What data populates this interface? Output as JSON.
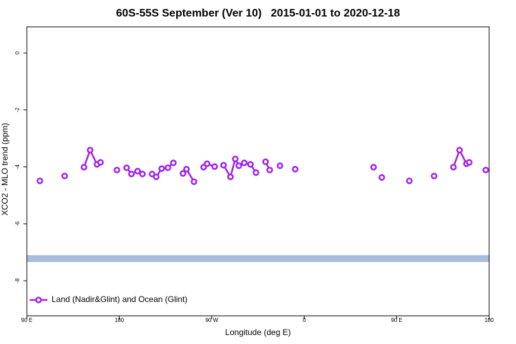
{
  "chart_data": {
    "type": "line",
    "title": "60S-55S September (Ver 10)   2015-01-01 to 2020-12-18",
    "x_label": "Longitude (deg E)",
    "y_label": "XCO2 - MLO trend (ppm)",
    "xlim": [
      90,
      540
    ],
    "ylim": [
      -9.23,
      0.92
    ],
    "xticks": [
      {
        "value": 90,
        "label": "90 E"
      },
      {
        "value": 180,
        "label": "180"
      },
      {
        "value": 270,
        "label": "90 W"
      },
      {
        "value": 360,
        "label": "0"
      },
      {
        "value": 450,
        "label": "90 E"
      },
      {
        "value": 540,
        "label": "180"
      }
    ],
    "yticks": [
      0,
      -2,
      -4,
      -6,
      -8
    ],
    "legend": "bottom-left",
    "band": {
      "value": -7.22,
      "color": "#a7bde0"
    },
    "series": [
      {
        "name": "Land (Nadir&Glint) and Ocean (Glint)",
        "color": "#a020f0",
        "x": [
          102.7,
          null,
          126.8,
          null,
          145.6,
          151.6,
          158.3,
          161.7,
          null,
          177.7,
          null,
          187.1,
          191.8,
          197.8,
          202.5,
          null,
          211.9,
          215.9,
          221.3,
          227.3,
          232.6,
          null,
          242.0,
          245.4,
          252.7,
          null,
          262.1,
          265.4,
          272.8,
          null,
          281.5,
          288.2,
          292.9,
          296.3,
          301.6,
          307.7,
          313.0,
          null,
          322.4,
          326.4,
          null,
          336.4,
          null,
          351.2,
          null,
          427.5,
          null,
          435.5,
          null,
          462.3,
          null,
          486.4,
          null,
          505.2,
          511.2,
          517.9,
          520.6,
          null,
          536.7
        ],
        "values": [
          -4.49,
          null,
          -4.32,
          null,
          -4.01,
          -3.41,
          -3.91,
          -3.84,
          null,
          -4.11,
          null,
          -4.03,
          -4.25,
          -4.15,
          -4.25,
          null,
          -4.25,
          -4.35,
          -4.06,
          -4.03,
          -3.86,
          null,
          -4.23,
          -4.08,
          -4.52,
          null,
          -4.01,
          -3.89,
          -3.99,
          null,
          -3.94,
          -4.35,
          -3.72,
          -3.96,
          -3.86,
          -3.91,
          -4.2,
          null,
          -3.82,
          -4.11,
          null,
          -3.96,
          null,
          -4.08,
          null,
          -4.01,
          null,
          -4.37,
          null,
          -4.49,
          null,
          -4.32,
          null,
          -4.01,
          -3.41,
          -3.89,
          -3.84,
          null,
          -4.11
        ]
      }
    ]
  }
}
